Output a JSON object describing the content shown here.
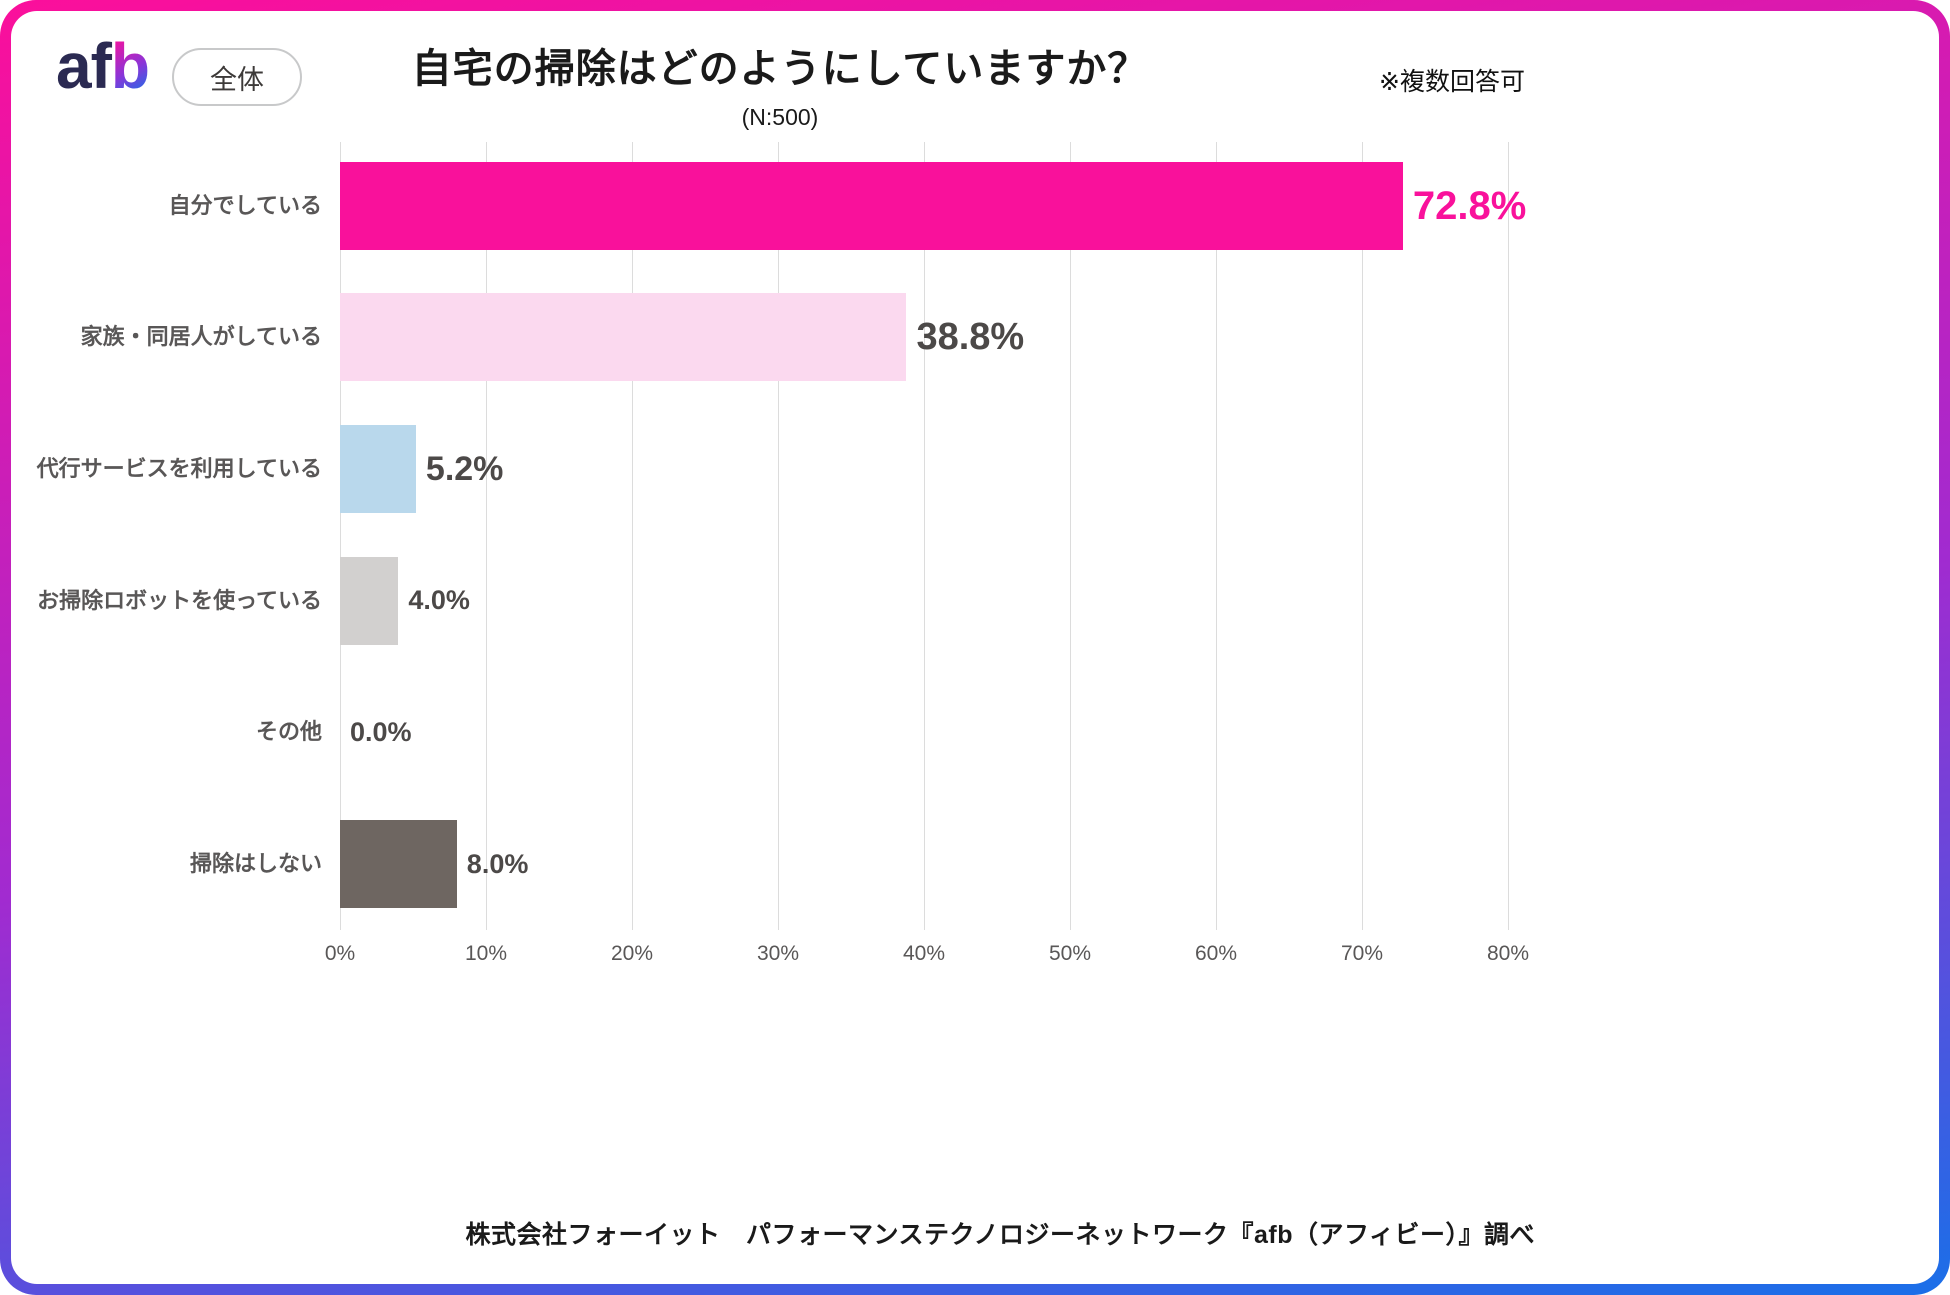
{
  "header": {
    "logo_af": "af",
    "logo_b": "b",
    "badge": "全体",
    "title": "自宅の掃除はどのようにしていますか？",
    "subtitle": "(N:500)",
    "note": "※複数回答可"
  },
  "footer": {
    "credit": "株式会社フォーイット　パフォーマンステクノロジーネットワーク『afb（アフィビー）』調べ"
  },
  "colors": {
    "frame_gradient_top": "#fb0f9b",
    "frame_gradient_mid": "#a12bd0",
    "frame_gradient_bottom": "#1a6fe8",
    "logo_navy": "#2b2a52",
    "grid_line": "#dcdcdc",
    "axis_text": "#595757",
    "category_text": "#595757",
    "title_text": "#1a1a1a"
  },
  "chart_data": {
    "type": "bar",
    "orientation": "horizontal",
    "title": "自宅の掃除はどのようにしていますか？",
    "sample_size": "N:500",
    "note": "※複数回答可",
    "categories": [
      "自分でしている",
      "家族・同居人がしている",
      "代行サービスを利用している",
      "お掃除ロボットを使っている",
      "その他",
      "掃除はしない"
    ],
    "values": [
      72.8,
      38.8,
      5.2,
      4.0,
      0.0,
      8.0
    ],
    "value_labels": [
      "72.8%",
      "38.8%",
      "5.2%",
      "4.0%",
      "0.0%",
      "8.0%"
    ],
    "bar_colors": [
      "#f9119b",
      "#fbd9ef",
      "#b9d8ec",
      "#d2d0cf",
      "#d2d0cf",
      "#6e6661"
    ],
    "value_label_colors": [
      "#f9119b",
      "#4c4948",
      "#4c4948",
      "#4c4948",
      "#4c4948",
      "#4c4948"
    ],
    "xlim": [
      0,
      80
    ],
    "x_ticks": [
      "0%",
      "10%",
      "20%",
      "30%",
      "40%",
      "50%",
      "60%",
      "70%",
      "80%"
    ],
    "grid": true,
    "legend": false,
    "xlabel": "",
    "ylabel": ""
  }
}
